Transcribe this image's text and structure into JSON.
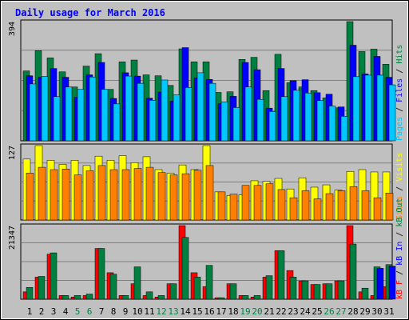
{
  "chart_data": {
    "type": "bar",
    "title": "Daily usage for March 2016",
    "categories": [
      "1",
      "2",
      "3",
      "4",
      "5",
      "6",
      "7",
      "8",
      "9",
      "10",
      "11",
      "12",
      "13",
      "14",
      "15",
      "16",
      "17",
      "18",
      "19",
      "20",
      "21",
      "22",
      "23",
      "24",
      "25",
      "26",
      "27",
      "28",
      "29",
      "30",
      "31"
    ],
    "weekend_days": [
      "5",
      "6",
      "12",
      "13",
      "19",
      "20",
      "26",
      "27"
    ],
    "panels": [
      {
        "name": "requests",
        "max_label": "394",
        "ylim": [
          0,
          394
        ],
        "legend": [
          {
            "text": "Pages",
            "color": "#00c8ff"
          },
          {
            "text": "Files",
            "color": "#0000ff"
          },
          {
            "text": "Hits",
            "color": "#008040"
          }
        ],
        "series": [
          {
            "name": "Hits",
            "color": "#008040",
            "values": [
              231,
              298,
              274,
              228,
              178,
              247,
              288,
              170,
              261,
              267,
              218,
              215,
              183,
              304,
              261,
              261,
              160,
              162,
              269,
              276,
              166,
              286,
              192,
              178,
              166,
              142,
              109,
              394,
              295,
              303,
              253
            ]
          },
          {
            "name": "Files",
            "color": "#0000ff",
            "values": [
              215,
              210,
              239,
              210,
              144,
              218,
              259,
              140,
              225,
              214,
              141,
              161,
              131,
              308,
              208,
              203,
              123,
              147,
              259,
              235,
              108,
              239,
              199,
              202,
              159,
              154,
              112,
              316,
              221,
              279,
              210
            ]
          },
          {
            "name": "Pages",
            "color": "#00c8ff",
            "values": [
              188,
              213,
              146,
              178,
              170,
              211,
              170,
              122,
              214,
              190,
              134,
              201,
              152,
              176,
              225,
              190,
              129,
              110,
              178,
              137,
              97,
              146,
              167,
              158,
              133,
              115,
              81,
              212,
              217,
              217,
              185
            ]
          }
        ]
      },
      {
        "name": "visitors",
        "max_label": "127",
        "ylim": [
          0,
          127
        ],
        "legend": [
          {
            "text": "Sites",
            "color": "#ff8000"
          },
          {
            "text": "Visits",
            "color": "#ffff00"
          }
        ],
        "series": [
          {
            "name": "Visits",
            "color": "#ffff00",
            "values": [
              104,
              127,
              102,
              95,
              102,
              93,
              109,
              102,
              110,
              98,
              108,
              86,
              80,
              94,
              86,
              127,
              48,
              42,
              43,
              67,
              66,
              71,
              53,
              72,
              56,
              60,
              51,
              83,
              86,
              82,
              82
            ]
          },
          {
            "name": "Sites",
            "color": "#ff8000",
            "values": [
              80,
              90,
              86,
              87,
              77,
              84,
              93,
              86,
              86,
              88,
              90,
              81,
              77,
              79,
              85,
              93,
              48,
              44,
              59,
              59,
              62,
              52,
              38,
              50,
              36,
              45,
              50,
              57,
              50,
              38,
              46
            ]
          }
        ]
      },
      {
        "name": "kbytes",
        "max_label": "21347",
        "ylim": [
          0,
          21347
        ],
        "legend": [
          {
            "text": "kB F",
            "color": "#ff0000"
          },
          {
            "text": "kB In",
            "color": "#0000ff"
          },
          {
            "text": "kB Out",
            "color": "#008040"
          }
        ],
        "series": [
          {
            "name": "kB F",
            "color": "#ff0000",
            "values": [
              2133,
              6403,
              13067,
              1067,
              640,
              1067,
              14720,
              7680,
              1067,
              4480,
              1067,
              640,
              4480,
              21347,
              7680,
              3627,
              427,
              4480,
              1067,
              640,
              6400,
              14080,
              8320,
              5333,
              4267,
              4480,
              5333,
              21347,
              2133,
              1067,
              3627
            ]
          },
          {
            "name": "kB Out",
            "color": "#008040",
            "values": [
              3413,
              6613,
              13440,
              1067,
              1067,
              1493,
              14720,
              7253,
              1067,
              9387,
              2133,
              1067,
              4480,
              17920,
              6400,
              9813,
              427,
              4480,
              1067,
              1067,
              6827,
              14080,
              6403,
              5333,
              4267,
              4480,
              5333,
              16000,
              3200,
              9387,
              10027
            ]
          },
          {
            "name": "kB In",
            "color": "#0000ff",
            "values": [
              0,
              0,
              0,
              0,
              0,
              0,
              0,
              0,
              0,
              0,
              0,
              0,
              0,
              0,
              0,
              0,
              0,
              0,
              0,
              0,
              0,
              0,
              0,
              0,
              0,
              0,
              0,
              0,
              0,
              8960,
              9600
            ]
          }
        ]
      }
    ]
  }
}
